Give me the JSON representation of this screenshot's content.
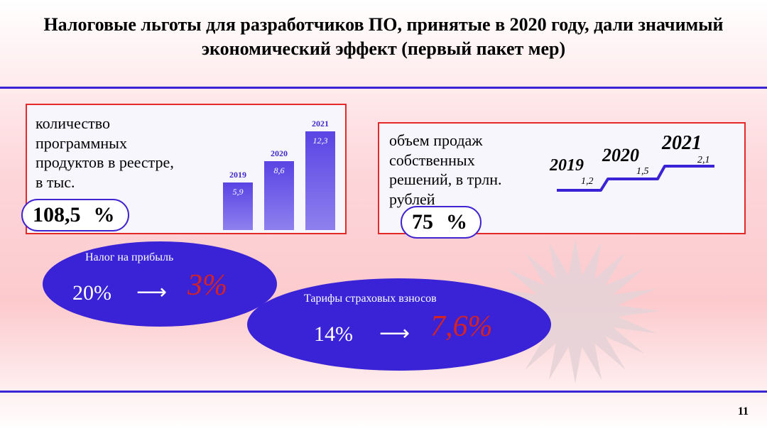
{
  "title": "Налоговые льготы для разработчиков ПО, принятые в 2020 году, дали значимый экономический эффект (первый пакет мер)",
  "page_number": "11",
  "colors": {
    "accent_border": "#e52828",
    "ellipse_fill": "#3a23d6",
    "to_color": "#d62222",
    "rule_color": "#3a23d6",
    "bar_fill_top": "#5a44e4",
    "bar_fill_bot": "#8f80ee",
    "step_line": "#3a23d6",
    "burst_fill": "#e6d3d7"
  },
  "left_card": {
    "text": "количество программных продуктов в реестре, в тыс.",
    "metric": "108,5",
    "metric_suffix": "%",
    "chart": {
      "type": "bar",
      "ylim": [
        0,
        14
      ],
      "bars": [
        {
          "year": "2019",
          "value_label": "5,9",
          "value": 5.9
        },
        {
          "year": "2020",
          "value_label": "8,6",
          "value": 8.6
        },
        {
          "year": "2021",
          "value_label": "12,3",
          "value": 12.3
        }
      ]
    }
  },
  "right_card": {
    "text": "объем продаж собственных решений, в трлн. рублей",
    "metric": "75",
    "metric_suffix": "%",
    "step": {
      "type": "step_line",
      "points": [
        {
          "year": "2019",
          "value_label": "1,2",
          "value": 1.2,
          "year_fontsize": 24
        },
        {
          "year": "2020",
          "value_label": "1,5",
          "value": 1.5,
          "year_fontsize": 26
        },
        {
          "year": "2021",
          "value_label": "2,1",
          "value": 2.1,
          "year_fontsize": 28
        }
      ]
    }
  },
  "ellipse_left": {
    "label": "Налог на прибыль",
    "from": "20%",
    "arrow": "⟶",
    "to": "3%",
    "to_fontsize": 42
  },
  "ellipse_right": {
    "label": "Тарифы страховых взносов",
    "from": "14%",
    "arrow": "⟶",
    "to": "7,6%",
    "to_fontsize": 42
  }
}
